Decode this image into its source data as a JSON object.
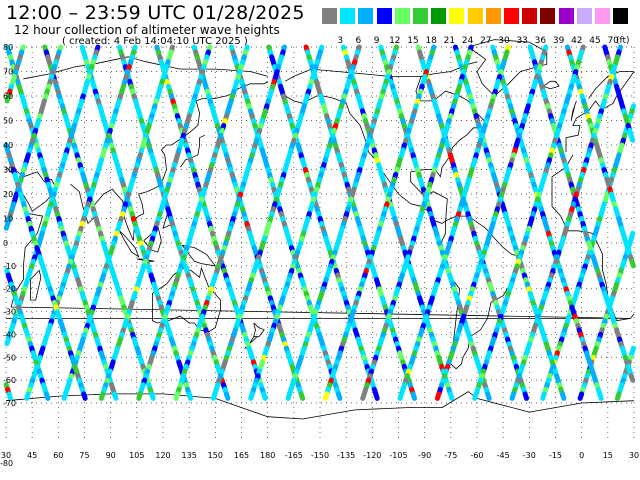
{
  "header": {
    "title": "12:00 – 23:59 UTC 01/28/2025",
    "subtitle": "12 hour collection of altimeter wave heights",
    "created": "( created:  4 Feb 14:04:10 UTC 2025 )"
  },
  "legend": {
    "colors": [
      "#808080",
      "#00e5ff",
      "#00b0ff",
      "#0000ff",
      "#66ff66",
      "#33cc33",
      "#009900",
      "#ffff00",
      "#ffcc00",
      "#ff9900",
      "#ff0000",
      "#cc0000",
      "#800000",
      "#9900cc",
      "#ccaaff",
      "#ff99ee",
      "#000000"
    ],
    "labels": [
      "3",
      "6",
      "9",
      "12",
      "15",
      "18",
      "21",
      "24",
      "27",
      "30",
      "33",
      "36",
      "39",
      "42",
      "45",
      "70"
    ],
    "unit": "(ft)"
  },
  "map": {
    "lat_labels": [
      {
        "text": "80",
        "lat": 80
      },
      {
        "text": "70",
        "lat": 70
      },
      {
        "text": "60",
        "lat": 60
      },
      {
        "text": "50",
        "lat": 50
      },
      {
        "text": "40",
        "lat": 40
      },
      {
        "text": "30",
        "lat": 30
      },
      {
        "text": "20",
        "lat": 20
      },
      {
        "text": "10",
        "lat": 10
      },
      {
        "text": "0",
        "lat": 0
      },
      {
        "text": "-10",
        "lat": -10
      },
      {
        "text": "-20",
        "lat": -20
      },
      {
        "text": "-30",
        "lat": -30
      },
      {
        "text": "-40",
        "lat": -40
      },
      {
        "text": "-50",
        "lat": -50
      },
      {
        "text": "-60",
        "lat": -60
      },
      {
        "text": "-70",
        "lat": -70
      }
    ],
    "bottom_lat_label": "-80",
    "lon_labels": [
      "30",
      "45",
      "60",
      "75",
      "90",
      "105",
      "120",
      "135",
      "150",
      "165",
      "180",
      "-165",
      "-150",
      "-135",
      "-120",
      "-105",
      "-90",
      "-75",
      "-60",
      "-45",
      "-30",
      "-15",
      "0",
      "15",
      "30"
    ]
  }
}
